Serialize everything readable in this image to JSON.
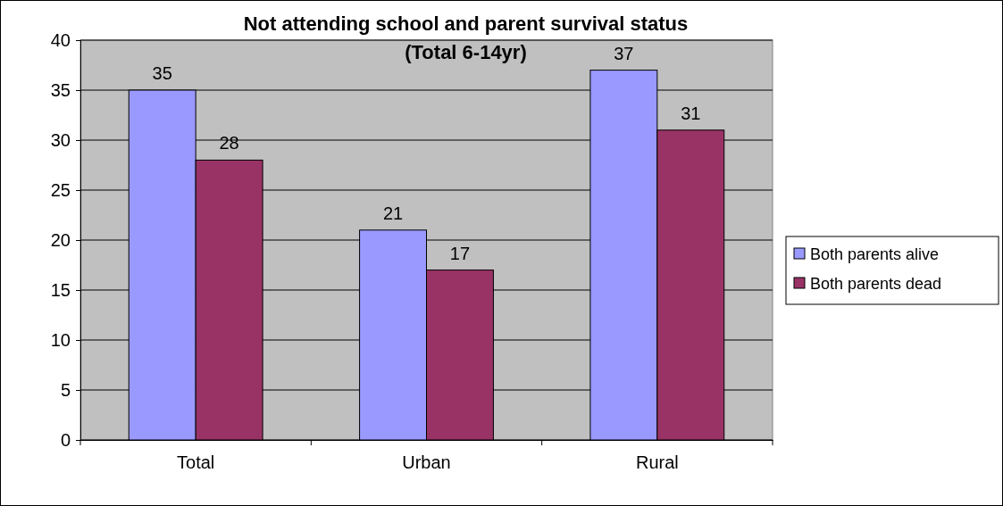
{
  "chart_data": {
    "type": "bar",
    "title": "Not attending school and parent survival status",
    "subtitle": "(Total 6-14yr)",
    "categories": [
      "Total",
      "Urban",
      "Rural"
    ],
    "series": [
      {
        "name": "Both parents alive",
        "color": "#9999ff",
        "values": [
          35,
          21,
          37
        ]
      },
      {
        "name": "Both parents dead",
        "color": "#993366",
        "values": [
          28,
          17,
          31
        ]
      }
    ],
    "ylim": [
      0,
      40
    ],
    "yticks": [
      0,
      5,
      10,
      15,
      20,
      25,
      30,
      35,
      40
    ],
    "grid": "y",
    "legend": "right",
    "data_labels": true
  }
}
